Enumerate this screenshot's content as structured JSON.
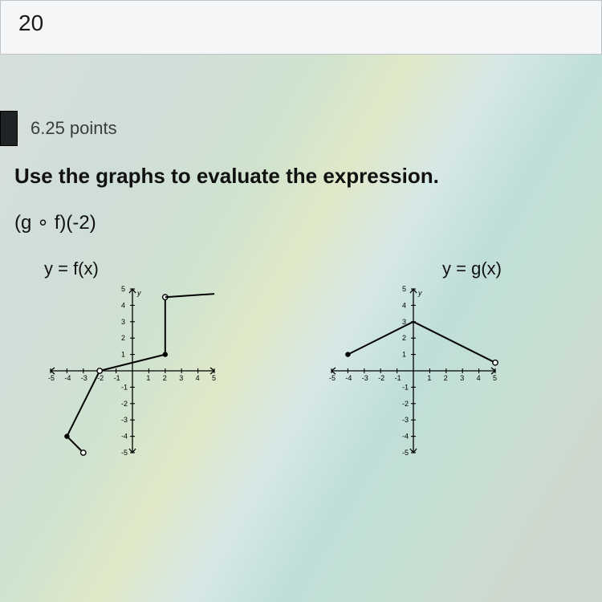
{
  "answer_value": "20",
  "points_label": "6.25 points",
  "question_text": "Use the graphs to evaluate the expression.",
  "expression_text": "(g ∘ f)(-2)",
  "graph_f": {
    "label": "y = f(x)",
    "xlim": [
      -5,
      5
    ],
    "ylim": [
      -5,
      5
    ],
    "tick_step": 1,
    "segments": [
      {
        "points": [
          [
            -3,
            -5
          ],
          [
            -4,
            -4
          ]
        ],
        "start_open": true,
        "end_filled": true
      },
      {
        "points": [
          [
            -4,
            -4
          ],
          [
            -2,
            0
          ]
        ],
        "end_filled": false
      },
      {
        "points": [
          [
            -2,
            0
          ],
          [
            2,
            1
          ]
        ],
        "start_open": true,
        "end_filled": true
      },
      {
        "points": [
          [
            2,
            1
          ],
          [
            2,
            4.5
          ]
        ],
        "start_open": false,
        "end_open": true
      },
      {
        "points": [
          [
            2,
            4.5
          ],
          [
            5,
            4.7
          ]
        ]
      }
    ]
  },
  "graph_g": {
    "label": "y = g(x)",
    "xlim": [
      -5,
      5
    ],
    "ylim": [
      -5,
      5
    ],
    "tick_step": 1,
    "segments": [
      {
        "points": [
          [
            -4,
            1
          ],
          [
            0,
            3
          ]
        ],
        "start_filled": true
      },
      {
        "points": [
          [
            0,
            3
          ],
          [
            5,
            0.5
          ]
        ],
        "end_open": true
      }
    ]
  },
  "colors": {
    "ink": "#000000",
    "answer_bg": "#f4f6f8",
    "tab_bg": "#1f2326"
  }
}
